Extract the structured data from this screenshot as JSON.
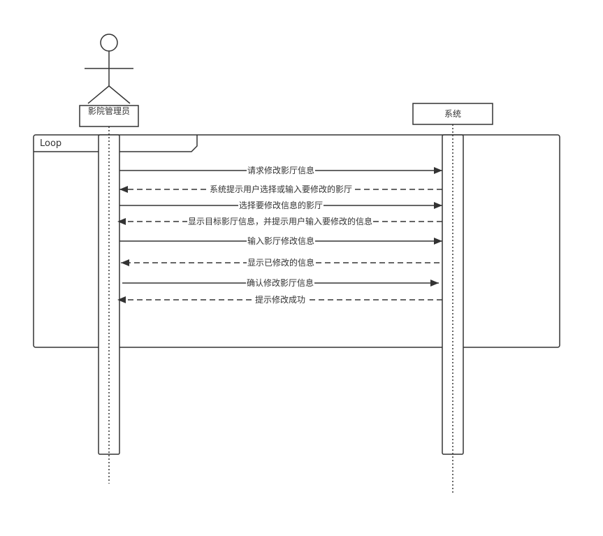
{
  "participants": {
    "actor": {
      "label": "影院管理员"
    },
    "system": {
      "label": "系统"
    }
  },
  "fragment": {
    "label": "Loop"
  },
  "messages": [
    {
      "text": "请求修改影厅信息",
      "kind": "sync"
    },
    {
      "text": "系统提示用户选择或输入要修改的影厅",
      "kind": "reply"
    },
    {
      "text": "选择要修改信息的影厅",
      "kind": "sync"
    },
    {
      "text": "显示目标影厅信息，并提示用户输入要修改的信息",
      "kind": "reply"
    },
    {
      "text": "输入影厅修改信息",
      "kind": "sync"
    },
    {
      "text": "显示已修改的信息",
      "kind": "reply"
    },
    {
      "text": "确认修改影厅信息",
      "kind": "sync"
    },
    {
      "text": "提示修改成功",
      "kind": "reply"
    }
  ]
}
